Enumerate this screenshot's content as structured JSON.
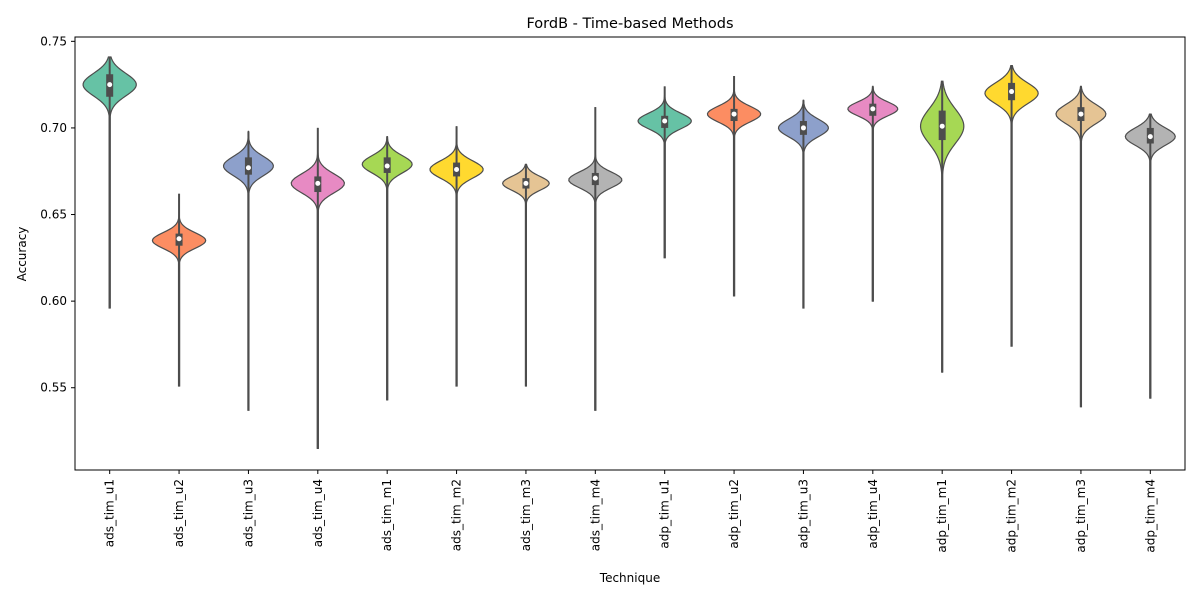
{
  "chart_data": {
    "type": "violin",
    "title": "FordB - Time-based Methods",
    "xlabel": "Technique",
    "ylabel": "Accuracy",
    "ylim": [
      0.5025,
      0.7525
    ],
    "yticks": [
      "0.55",
      "0.60",
      "0.65",
      "0.70",
      "0.75"
    ],
    "grid": false,
    "categories": [
      "ads_tim_u1",
      "ads_tim_u2",
      "ads_tim_u3",
      "ads_tim_u4",
      "ads_tim_m1",
      "ads_tim_m2",
      "ads_tim_m3",
      "ads_tim_m4",
      "adp_tim_u1",
      "adp_tim_u2",
      "adp_tim_u3",
      "adp_tim_u4",
      "adp_tim_m1",
      "adp_tim_m2",
      "adp_tim_m3",
      "adp_tim_m4"
    ],
    "colors": [
      "#66c2a5",
      "#fc8d62",
      "#8da0cb",
      "#e78ac3",
      "#a6d854",
      "#ffd92f",
      "#e5c494",
      "#b3b3b3"
    ],
    "violins": [
      {
        "min": 0.596,
        "max": 0.741,
        "q1": 0.718,
        "median": 0.725,
        "q3": 0.731,
        "mode": 0.725,
        "halfwidth": 0.8,
        "spread": 0.0065
      },
      {
        "min": 0.551,
        "max": 0.662,
        "q1": 0.632,
        "median": 0.636,
        "q3": 0.639,
        "mode": 0.635,
        "halfwidth": 0.8,
        "spread": 0.0045
      },
      {
        "min": 0.537,
        "max": 0.698,
        "q1": 0.673,
        "median": 0.677,
        "q3": 0.683,
        "mode": 0.678,
        "halfwidth": 0.75,
        "spread": 0.0055
      },
      {
        "min": 0.515,
        "max": 0.7,
        "q1": 0.663,
        "median": 0.668,
        "q3": 0.672,
        "mode": 0.668,
        "halfwidth": 0.8,
        "spread": 0.0055
      },
      {
        "min": 0.543,
        "max": 0.695,
        "q1": 0.674,
        "median": 0.678,
        "q3": 0.683,
        "mode": 0.679,
        "halfwidth": 0.75,
        "spread": 0.005
      },
      {
        "min": 0.551,
        "max": 0.701,
        "q1": 0.672,
        "median": 0.676,
        "q3": 0.68,
        "mode": 0.676,
        "halfwidth": 0.8,
        "spread": 0.005
      },
      {
        "min": 0.551,
        "max": 0.679,
        "q1": 0.665,
        "median": 0.668,
        "q3": 0.671,
        "mode": 0.668,
        "halfwidth": 0.7,
        "spread": 0.004
      },
      {
        "min": 0.537,
        "max": 0.712,
        "q1": 0.667,
        "median": 0.671,
        "q3": 0.674,
        "mode": 0.67,
        "halfwidth": 0.8,
        "spread": 0.0045
      },
      {
        "min": 0.625,
        "max": 0.724,
        "q1": 0.7,
        "median": 0.704,
        "q3": 0.707,
        "mode": 0.704,
        "halfwidth": 0.8,
        "spread": 0.0045
      },
      {
        "min": 0.603,
        "max": 0.73,
        "q1": 0.704,
        "median": 0.708,
        "q3": 0.711,
        "mode": 0.708,
        "halfwidth": 0.8,
        "spread": 0.0045
      },
      {
        "min": 0.596,
        "max": 0.716,
        "q1": 0.696,
        "median": 0.7,
        "q3": 0.704,
        "mode": 0.7,
        "halfwidth": 0.75,
        "spread": 0.005
      },
      {
        "min": 0.6,
        "max": 0.724,
        "q1": 0.707,
        "median": 0.711,
        "q3": 0.714,
        "mode": 0.711,
        "halfwidth": 0.75,
        "spread": 0.004
      },
      {
        "min": 0.559,
        "max": 0.727,
        "q1": 0.693,
        "median": 0.701,
        "q3": 0.71,
        "mode": 0.701,
        "halfwidth": 0.65,
        "spread": 0.01
      },
      {
        "min": 0.574,
        "max": 0.736,
        "q1": 0.716,
        "median": 0.721,
        "q3": 0.726,
        "mode": 0.72,
        "halfwidth": 0.8,
        "spread": 0.006
      },
      {
        "min": 0.539,
        "max": 0.724,
        "q1": 0.704,
        "median": 0.708,
        "q3": 0.712,
        "mode": 0.708,
        "halfwidth": 0.75,
        "spread": 0.0055
      },
      {
        "min": 0.544,
        "max": 0.708,
        "q1": 0.691,
        "median": 0.695,
        "q3": 0.7,
        "mode": 0.695,
        "halfwidth": 0.75,
        "spread": 0.005
      }
    ]
  }
}
